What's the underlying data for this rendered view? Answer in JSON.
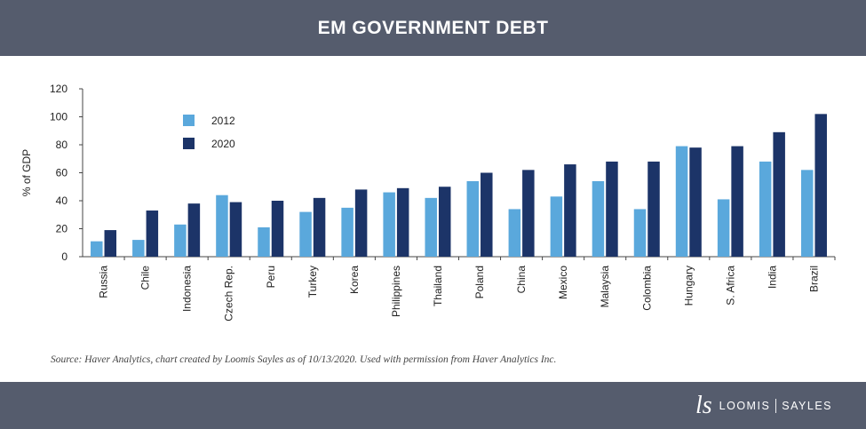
{
  "header": {
    "title": "EM GOVERNMENT DEBT"
  },
  "colors": {
    "series_2012": "#5aa8dc",
    "series_2020": "#1c3468",
    "band": "#555c6d"
  },
  "chart_data": {
    "type": "bar",
    "title": "EM GOVERNMENT DEBT",
    "xlabel": "",
    "ylabel": "% of GDP",
    "ylim": [
      0,
      120
    ],
    "yticks": [
      0,
      20,
      40,
      60,
      80,
      100,
      120
    ],
    "grid": false,
    "legend_position": "top-left",
    "categories": [
      "Russia",
      "Chile",
      "Indonesia",
      "Czech Rep.",
      "Peru",
      "Turkey",
      "Korea",
      "Philippines",
      "Thailand",
      "Poland",
      "China",
      "Mexico",
      "Malaysia",
      "Colombia",
      "Hungary",
      "S. Africa",
      "India",
      "Brazil"
    ],
    "series": [
      {
        "name": "2012",
        "values": [
          11,
          12,
          23,
          44,
          21,
          32,
          35,
          46,
          42,
          54,
          34,
          43,
          54,
          34,
          79,
          41,
          68,
          62
        ]
      },
      {
        "name": "2020",
        "values": [
          19,
          33,
          38,
          39,
          40,
          42,
          48,
          49,
          50,
          60,
          62,
          66,
          68,
          68,
          78,
          79,
          89,
          102
        ]
      }
    ]
  },
  "footer": {
    "source": "Source: Haver Analytics, chart created by Loomis Sayles as of 10/13/2020. Used with permission from Haver Analytics Inc.",
    "logo_mark": "ls",
    "logo_word_left": "LOOMIS",
    "logo_word_right": "SAYLES"
  }
}
